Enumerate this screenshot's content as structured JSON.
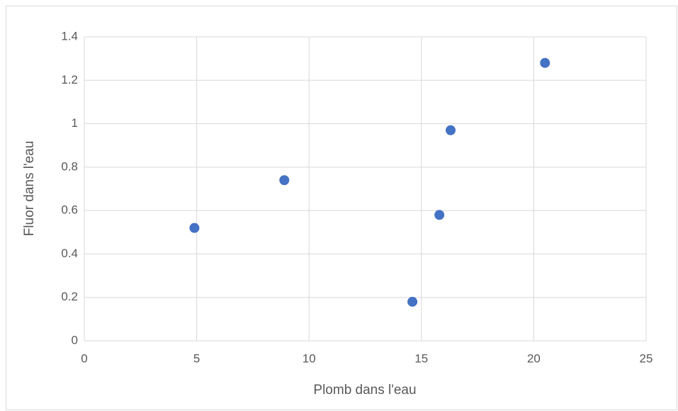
{
  "chart_data": {
    "type": "scatter",
    "x_label": "Plomb dans l'eau",
    "y_label": "Fluor dans l'eau",
    "x": [
      4.9,
      8.9,
      14.6,
      15.8,
      16.3,
      20.5
    ],
    "values": [
      0.52,
      0.74,
      0.18,
      0.58,
      0.97,
      1.28
    ],
    "color": "#4472c4",
    "xlim": [
      0,
      25
    ],
    "xticks": [
      0,
      5,
      10,
      15,
      20,
      25
    ],
    "ylim": [
      0,
      1.4
    ],
    "yticks": [
      0,
      0.2,
      0.4,
      0.6,
      0.8,
      1,
      1.2,
      1.4
    ],
    "grid": true
  }
}
